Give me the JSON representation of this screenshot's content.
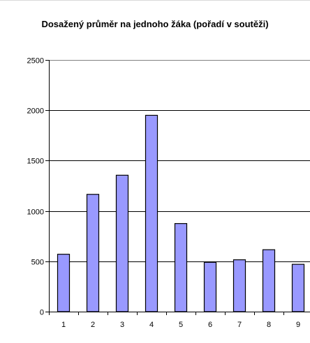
{
  "chart_data": {
    "type": "bar",
    "title": "Dosažený průměr na jednoho žáka (pořadí v soutěži)",
    "xlabel": "",
    "ylabel": "",
    "categories": [
      "1",
      "2",
      "3",
      "4",
      "5",
      "6",
      "7",
      "8",
      "9"
    ],
    "values": [
      570,
      1165,
      1355,
      1950,
      875,
      490,
      515,
      615,
      470
    ],
    "ylim": [
      0,
      2500
    ],
    "yticks": [
      0,
      500,
      1000,
      1500,
      2000,
      2500
    ],
    "ytick_labels": [
      "0",
      "500",
      "1000",
      "1500",
      "2000",
      "2500"
    ],
    "grid": true,
    "legend": "none",
    "colors": {
      "bar_fill": "#9999ff",
      "bar_stroke": "#000000",
      "gridline": "#000000",
      "axis": "#000000",
      "plot_border": "#808080"
    }
  }
}
